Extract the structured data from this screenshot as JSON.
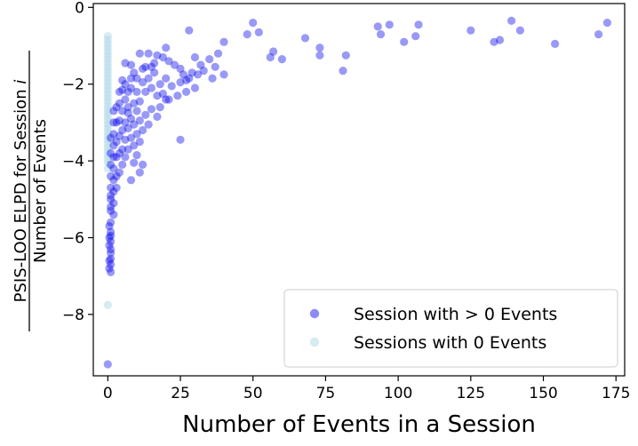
{
  "chart_data": {
    "type": "scatter",
    "xlabel": "Number of Events in a Session",
    "ylabel_numerator": "PSIS-LOO ELPD for Session ",
    "ylabel_var": "i",
    "ylabel_denominator": "Number of Events",
    "xlim": [
      -5,
      178
    ],
    "ylim": [
      -9.6,
      0.1
    ],
    "x_ticks": [
      0,
      25,
      50,
      75,
      100,
      125,
      150,
      175
    ],
    "y_ticks": [
      0,
      -2,
      -4,
      -6,
      -8
    ],
    "x_tick_labels": [
      "0",
      "25",
      "50",
      "75",
      "100",
      "125",
      "150",
      "175"
    ],
    "y_tick_labels": [
      "0",
      "−2",
      "−4",
      "−6",
      "−8"
    ],
    "grid": false,
    "legend_position": "lower-right",
    "series": [
      {
        "name": "Session with > 0 Events",
        "color": "#0000ee",
        "alpha": 0.4,
        "points": [
          [
            50,
            -0.4
          ],
          [
            52,
            -0.65
          ],
          [
            48,
            -0.7
          ],
          [
            28,
            -0.6
          ],
          [
            57,
            -1.15
          ],
          [
            60,
            -1.35
          ],
          [
            56,
            -1.3
          ],
          [
            68,
            -0.8
          ],
          [
            73,
            -1.05
          ],
          [
            73,
            -1.25
          ],
          [
            81,
            -1.65
          ],
          [
            82,
            -1.25
          ],
          [
            93,
            -0.5
          ],
          [
            94,
            -0.7
          ],
          [
            97,
            -0.45
          ],
          [
            102,
            -0.9
          ],
          [
            106,
            -0.75
          ],
          [
            107,
            -0.45
          ],
          [
            125,
            -0.6
          ],
          [
            133,
            -0.9
          ],
          [
            135,
            -0.85
          ],
          [
            139,
            -0.35
          ],
          [
            142,
            -0.6
          ],
          [
            154,
            -0.95
          ],
          [
            169,
            -0.7
          ],
          [
            172,
            -0.4
          ],
          [
            40,
            -0.9
          ],
          [
            38,
            -1.2
          ],
          [
            35,
            -1.35
          ],
          [
            32,
            -1.5
          ],
          [
            30,
            -1.3
          ],
          [
            29,
            -1.7
          ],
          [
            27,
            -1.9
          ],
          [
            25,
            -1.6
          ],
          [
            23,
            -1.5
          ],
          [
            21,
            -1.4
          ],
          [
            20,
            -1.05
          ],
          [
            19,
            -1.3
          ],
          [
            17,
            -1.25
          ],
          [
            16,
            -1.45
          ],
          [
            14,
            -1.2
          ],
          [
            13,
            -1.55
          ],
          [
            11,
            -1.2
          ],
          [
            8,
            -1.5
          ],
          [
            6,
            -1.45
          ],
          [
            40,
            -1.75
          ],
          [
            37,
            -1.55
          ],
          [
            36,
            -1.85
          ],
          [
            33,
            -1.65
          ],
          [
            31,
            -1.75
          ],
          [
            30,
            -2.1
          ],
          [
            28,
            -1.85
          ],
          [
            27,
            -2.2
          ],
          [
            26,
            -1.75
          ],
          [
            25,
            -1.95
          ],
          [
            24,
            -2.3
          ],
          [
            22,
            -2.05
          ],
          [
            21,
            -2.4
          ],
          [
            20,
            -1.85
          ],
          [
            19,
            -2.25
          ],
          [
            18,
            -2.0
          ],
          [
            17,
            -2.3
          ],
          [
            16,
            -1.7
          ],
          [
            15,
            -2.1
          ],
          [
            15,
            -1.55
          ],
          [
            14,
            -1.85
          ],
          [
            13,
            -2.2
          ],
          [
            12,
            -1.95
          ],
          [
            12,
            -1.6
          ],
          [
            11,
            -2.45
          ],
          [
            10,
            -1.85
          ],
          [
            10,
            -2.2
          ],
          [
            9,
            -1.7
          ],
          [
            9,
            -2.5
          ],
          [
            8,
            -2.1
          ],
          [
            8,
            -1.85
          ],
          [
            7,
            -2.2
          ],
          [
            7,
            -2.6
          ],
          [
            6,
            -2.0
          ],
          [
            6,
            -2.4
          ],
          [
            5,
            -2.15
          ],
          [
            5,
            -2.7
          ],
          [
            5,
            -1.9
          ],
          [
            4,
            -2.5
          ],
          [
            4,
            -2.2
          ],
          [
            25,
            -3.45
          ],
          [
            20,
            -2.4
          ],
          [
            18,
            -2.6
          ],
          [
            17,
            -2.85
          ],
          [
            15,
            -2.65
          ],
          [
            14,
            -3.05
          ],
          [
            13,
            -2.8
          ],
          [
            12,
            -3.2
          ],
          [
            11,
            -2.95
          ],
          [
            11,
            -3.5
          ],
          [
            10,
            -3.3
          ],
          [
            10,
            -2.7
          ],
          [
            9,
            -3.05
          ],
          [
            9,
            -3.6
          ],
          [
            8,
            -2.9
          ],
          [
            8,
            -3.4
          ],
          [
            7,
            -3.15
          ],
          [
            7,
            -3.7
          ],
          [
            7,
            -2.75
          ],
          [
            6,
            -3.0
          ],
          [
            6,
            -3.45
          ],
          [
            6,
            -3.9
          ],
          [
            5,
            -3.2
          ],
          [
            5,
            -3.7
          ],
          [
            5,
            -4.1
          ],
          [
            4,
            -2.95
          ],
          [
            4,
            -3.35
          ],
          [
            4,
            -3.8
          ],
          [
            4,
            -4.3
          ],
          [
            3,
            -2.6
          ],
          [
            3,
            -3.0
          ],
          [
            3,
            -3.5
          ],
          [
            3,
            -3.9
          ],
          [
            3,
            -4.4
          ],
          [
            3,
            -4.7
          ],
          [
            10,
            -3.85
          ],
          [
            12,
            -4.1
          ],
          [
            11,
            -4.3
          ],
          [
            9,
            -4.05
          ],
          [
            8,
            -4.5
          ],
          [
            2,
            -2.7
          ],
          [
            2,
            -3.0
          ],
          [
            2,
            -3.3
          ],
          [
            2,
            -3.6
          ],
          [
            2,
            -3.9
          ],
          [
            2,
            -4.2
          ],
          [
            2,
            -4.5
          ],
          [
            2,
            -4.8
          ],
          [
            2,
            -5.1
          ],
          [
            2,
            -5.4
          ],
          [
            1,
            -3.4
          ],
          [
            1,
            -3.8
          ],
          [
            1,
            -4.1
          ],
          [
            1,
            -4.4
          ],
          [
            1,
            -4.7
          ],
          [
            1,
            -5.0
          ],
          [
            1,
            -5.3
          ],
          [
            1,
            -5.6
          ],
          [
            1,
            -5.85
          ],
          [
            1,
            -6.1
          ],
          [
            1,
            -6.4
          ],
          [
            1,
            -6.7
          ],
          [
            1,
            -6.9
          ],
          [
            1,
            -6.3
          ],
          [
            1,
            -6.55
          ],
          [
            1,
            -5.95
          ],
          [
            1,
            -5.2
          ],
          [
            1,
            -4.9
          ],
          [
            0.5,
            -6.2
          ],
          [
            0.5,
            -6.6
          ],
          [
            0.5,
            -6.8
          ],
          [
            0.5,
            -5.7
          ],
          [
            0.5,
            -6.0
          ],
          [
            0,
            -9.3
          ]
        ]
      },
      {
        "name": "Sessions with 0 Events",
        "color": "#add8e6",
        "alpha": 0.5,
        "points": [
          [
            0,
            -0.75
          ],
          [
            0,
            -0.85
          ],
          [
            0,
            -0.95
          ],
          [
            0,
            -1.05
          ],
          [
            0,
            -1.15
          ],
          [
            0,
            -1.25
          ],
          [
            0,
            -1.35
          ],
          [
            0,
            -1.45
          ],
          [
            0,
            -1.55
          ],
          [
            0,
            -1.65
          ],
          [
            0,
            -1.75
          ],
          [
            0,
            -1.85
          ],
          [
            0,
            -1.95
          ],
          [
            0,
            -2.05
          ],
          [
            0,
            -2.15
          ],
          [
            0,
            -2.25
          ],
          [
            0,
            -2.35
          ],
          [
            0,
            -2.45
          ],
          [
            0,
            -2.55
          ],
          [
            0,
            -2.65
          ],
          [
            0,
            -2.75
          ],
          [
            0,
            -2.85
          ],
          [
            0,
            -2.95
          ],
          [
            0,
            -3.05
          ],
          [
            0,
            -3.15
          ],
          [
            0,
            -3.25
          ],
          [
            0,
            -3.35
          ],
          [
            0,
            -3.45
          ],
          [
            0,
            -3.55
          ],
          [
            0,
            -3.65
          ],
          [
            0,
            -3.75
          ],
          [
            0,
            -3.85
          ],
          [
            0,
            -3.95
          ],
          [
            0,
            -4.05
          ],
          [
            0,
            -4.2
          ],
          [
            0,
            -7.75
          ]
        ]
      }
    ]
  }
}
